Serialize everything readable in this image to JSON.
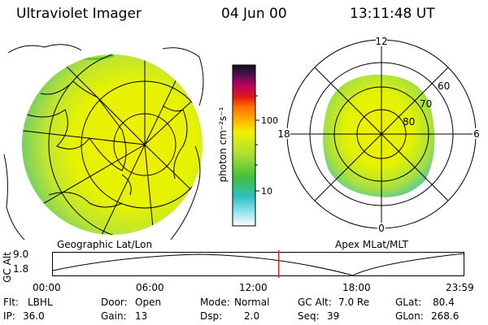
{
  "header": {
    "instrument": "Ultraviolet Imager",
    "date": "04 Jun 00",
    "time": "13:11:48 UT"
  },
  "left_panel": {
    "caption": "Geographic Lat/Lon"
  },
  "right_panel": {
    "caption": "Apex MLat/MLT",
    "mlt_labels": {
      "top": "12",
      "bottom": "0",
      "left": "18",
      "right": "6"
    },
    "mlat_labels": [
      "60",
      "70",
      "80"
    ]
  },
  "colorbar": {
    "unit_label": "photon cm⁻²s⁻¹",
    "ticks": [
      "100",
      "10"
    ],
    "scale": "log",
    "colors": [
      "#ffffff",
      "#80e0e8",
      "#30c0c0",
      "#40c040",
      "#b0e030",
      "#f0f000",
      "#ffb000",
      "#ff7000",
      "#e01818",
      "#c00060",
      "#4a1050",
      "#101018"
    ]
  },
  "timeline": {
    "axis_label": "GC Alt",
    "y_ticks": [
      "9.0",
      "1.8"
    ],
    "x_ticks": [
      "00:00",
      "06:00",
      "12:00",
      "18:00",
      "23:59"
    ],
    "current_marker_hours": 13.2,
    "marker_color": "#e02020"
  },
  "info": {
    "row1": [
      {
        "key": "Flt:",
        "value": "LBHL"
      },
      {
        "key": "Door:",
        "value": "Open"
      },
      {
        "key": "Mode:",
        "value": "Normal"
      },
      {
        "key": "GC Alt:",
        "value": "7.0 Re"
      },
      {
        "key": "GLat:",
        "value": "80.4"
      }
    ],
    "row2": [
      {
        "key": "IP:",
        "value": "36.0"
      },
      {
        "key": "Gain:",
        "value": "13"
      },
      {
        "key": "Dsp:",
        "value": "2.0"
      },
      {
        "key": "Seq:",
        "value": "39"
      },
      {
        "key": "GLon:",
        "value": "268.6"
      }
    ]
  }
}
